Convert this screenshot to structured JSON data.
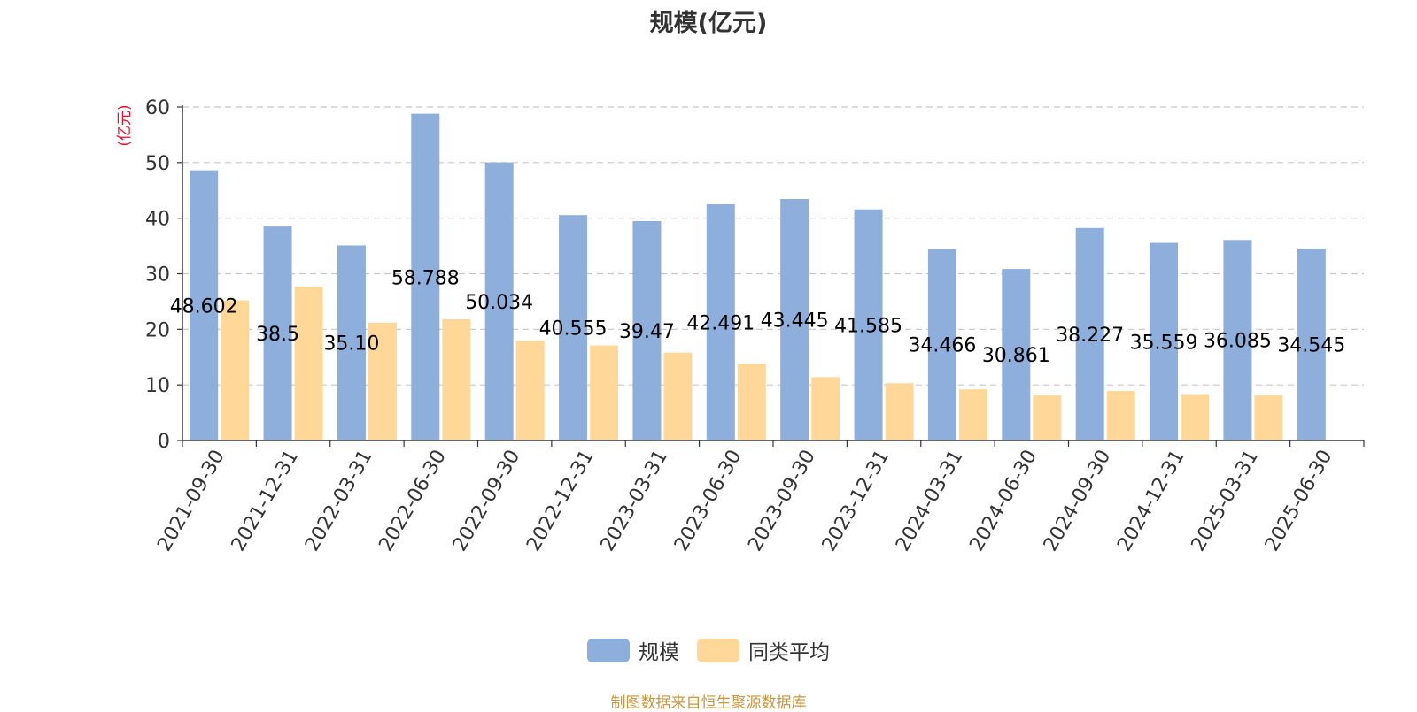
{
  "chart_data": {
    "type": "bar",
    "title": "规模(亿元)",
    "ylabel": "(亿元)",
    "xlabel": "",
    "ylim": [
      0,
      60
    ],
    "yticks": [
      0,
      10,
      20,
      30,
      40,
      50,
      60
    ],
    "grid": true,
    "legend_position": "bottom-center",
    "categories": [
      "2021-09-30",
      "2021-12-31",
      "2022-03-31",
      "2022-06-30",
      "2022-09-30",
      "2022-12-31",
      "2023-03-31",
      "2023-06-30",
      "2023-09-30",
      "2023-12-31",
      "2024-03-31",
      "2024-06-30",
      "2024-09-30",
      "2024-12-31",
      "2025-03-31",
      "2025-06-30"
    ],
    "series": [
      {
        "name": "规模",
        "color": "#8eaedb",
        "values": [
          48.602,
          38.5,
          35.1,
          58.788,
          50.034,
          40.555,
          39.47,
          42.491,
          43.445,
          41.585,
          34.466,
          30.861,
          38.227,
          35.559,
          36.085,
          34.545
        ],
        "data_labels": [
          "48.602",
          "38.5",
          "35.10",
          "58.788",
          "50.034",
          "40.555",
          "39.47",
          "42.491",
          "43.445",
          "41.585",
          "34.466",
          "30.861",
          "38.227",
          "35.559",
          "36.085",
          "34.545"
        ]
      },
      {
        "name": "同类平均",
        "color": "#ffd899",
        "values": [
          25.2,
          27.7,
          21.2,
          21.8,
          18.0,
          17.1,
          15.8,
          13.8,
          11.4,
          10.3,
          9.2,
          8.1,
          8.9,
          8.2,
          8.1,
          null
        ]
      }
    ]
  },
  "legend": {
    "items": [
      {
        "label": "规模",
        "color": "#8eaedb"
      },
      {
        "label": "同类平均",
        "color": "#ffd899"
      }
    ]
  },
  "source_note": "制图数据来自恒生聚源数据库"
}
